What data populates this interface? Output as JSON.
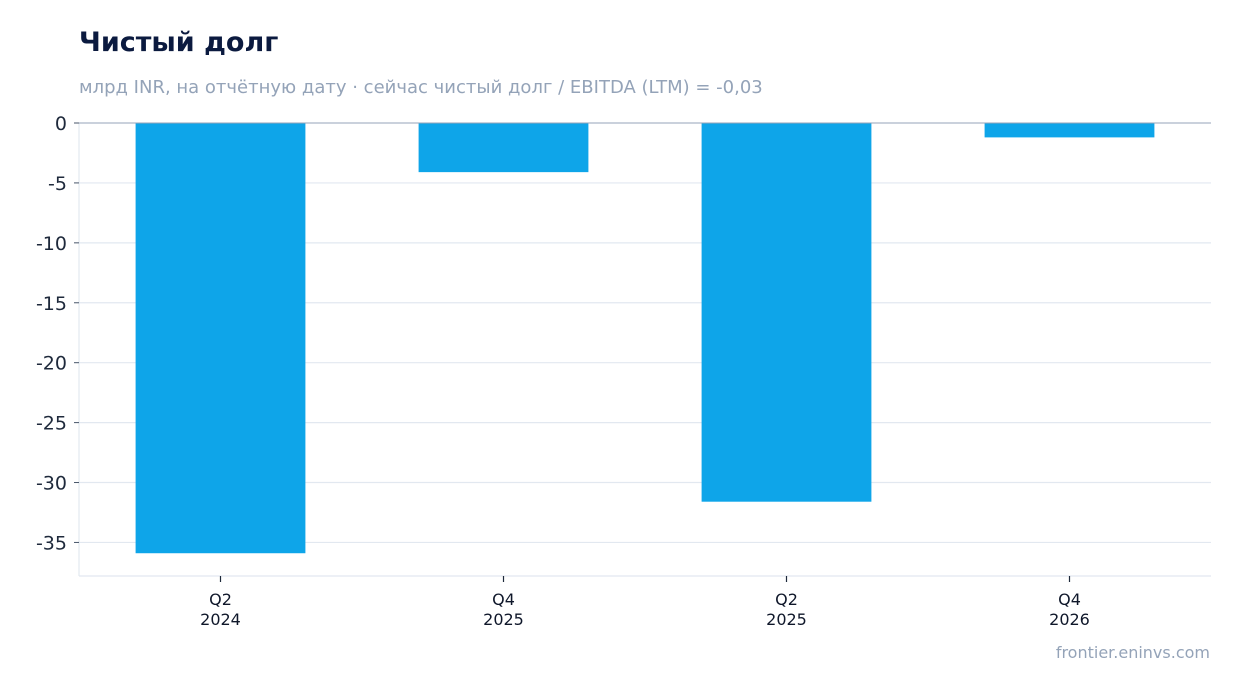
{
  "chart_data": {
    "type": "bar",
    "title": "Чистый долг",
    "subtitle": "млрд INR, на отчётную дату · сейчас чистый долг / EBITDA (LTM) = -0,03",
    "categories": [
      [
        "Q2",
        "2024"
      ],
      [
        "Q4",
        "2025"
      ],
      [
        "Q2",
        "2025"
      ],
      [
        "Q4",
        "2026"
      ]
    ],
    "values": [
      -35.9,
      -4.1,
      -31.6,
      -1.2
    ],
    "ylim": [
      -37.8,
      0
    ],
    "yticks": [
      0,
      -5,
      -10,
      -15,
      -20,
      -25,
      -30,
      -35
    ],
    "ytick_labels": [
      "0",
      "-5",
      "-10",
      "-15",
      "-20",
      "-25",
      "-30",
      "-35"
    ],
    "grid": true,
    "bar_color": "#0ea5e9",
    "grid_color": "#e2e8f0",
    "axis_color": "#94a3b8"
  },
  "source": "frontier.eninvs.com"
}
